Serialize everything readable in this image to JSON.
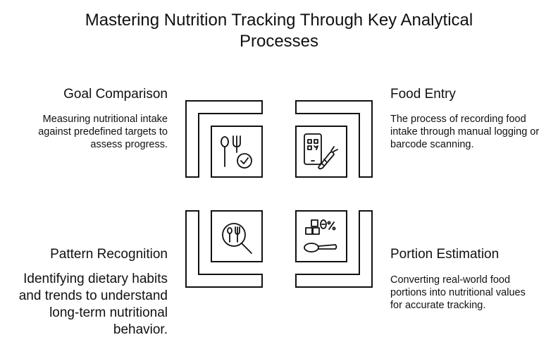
{
  "title": "Mastering Nutrition Tracking Through Key Analytical Processes",
  "sections": [
    {
      "heading": "Goal Comparison",
      "description": "Measuring nutritional intake against predefined targets to assess progress.",
      "icon": "fork-check-icon"
    },
    {
      "heading": "Food Entry",
      "description": "The process of recording food intake through manual logging or barcode scanning.",
      "icon": "phone-qr-carrot-icon"
    },
    {
      "heading": "Pattern Recognition",
      "description": "Identifying dietary habits and trends to understand long-term nutritional behavior.",
      "icon": "magnifier-utensils-icon"
    },
    {
      "heading": "Portion Estimation",
      "description": "Converting real-world food portions into nutritional values for accurate tracking.",
      "icon": "scale-spoon-icon"
    }
  ],
  "colors": {
    "stroke": "#111111",
    "background": "#ffffff"
  }
}
